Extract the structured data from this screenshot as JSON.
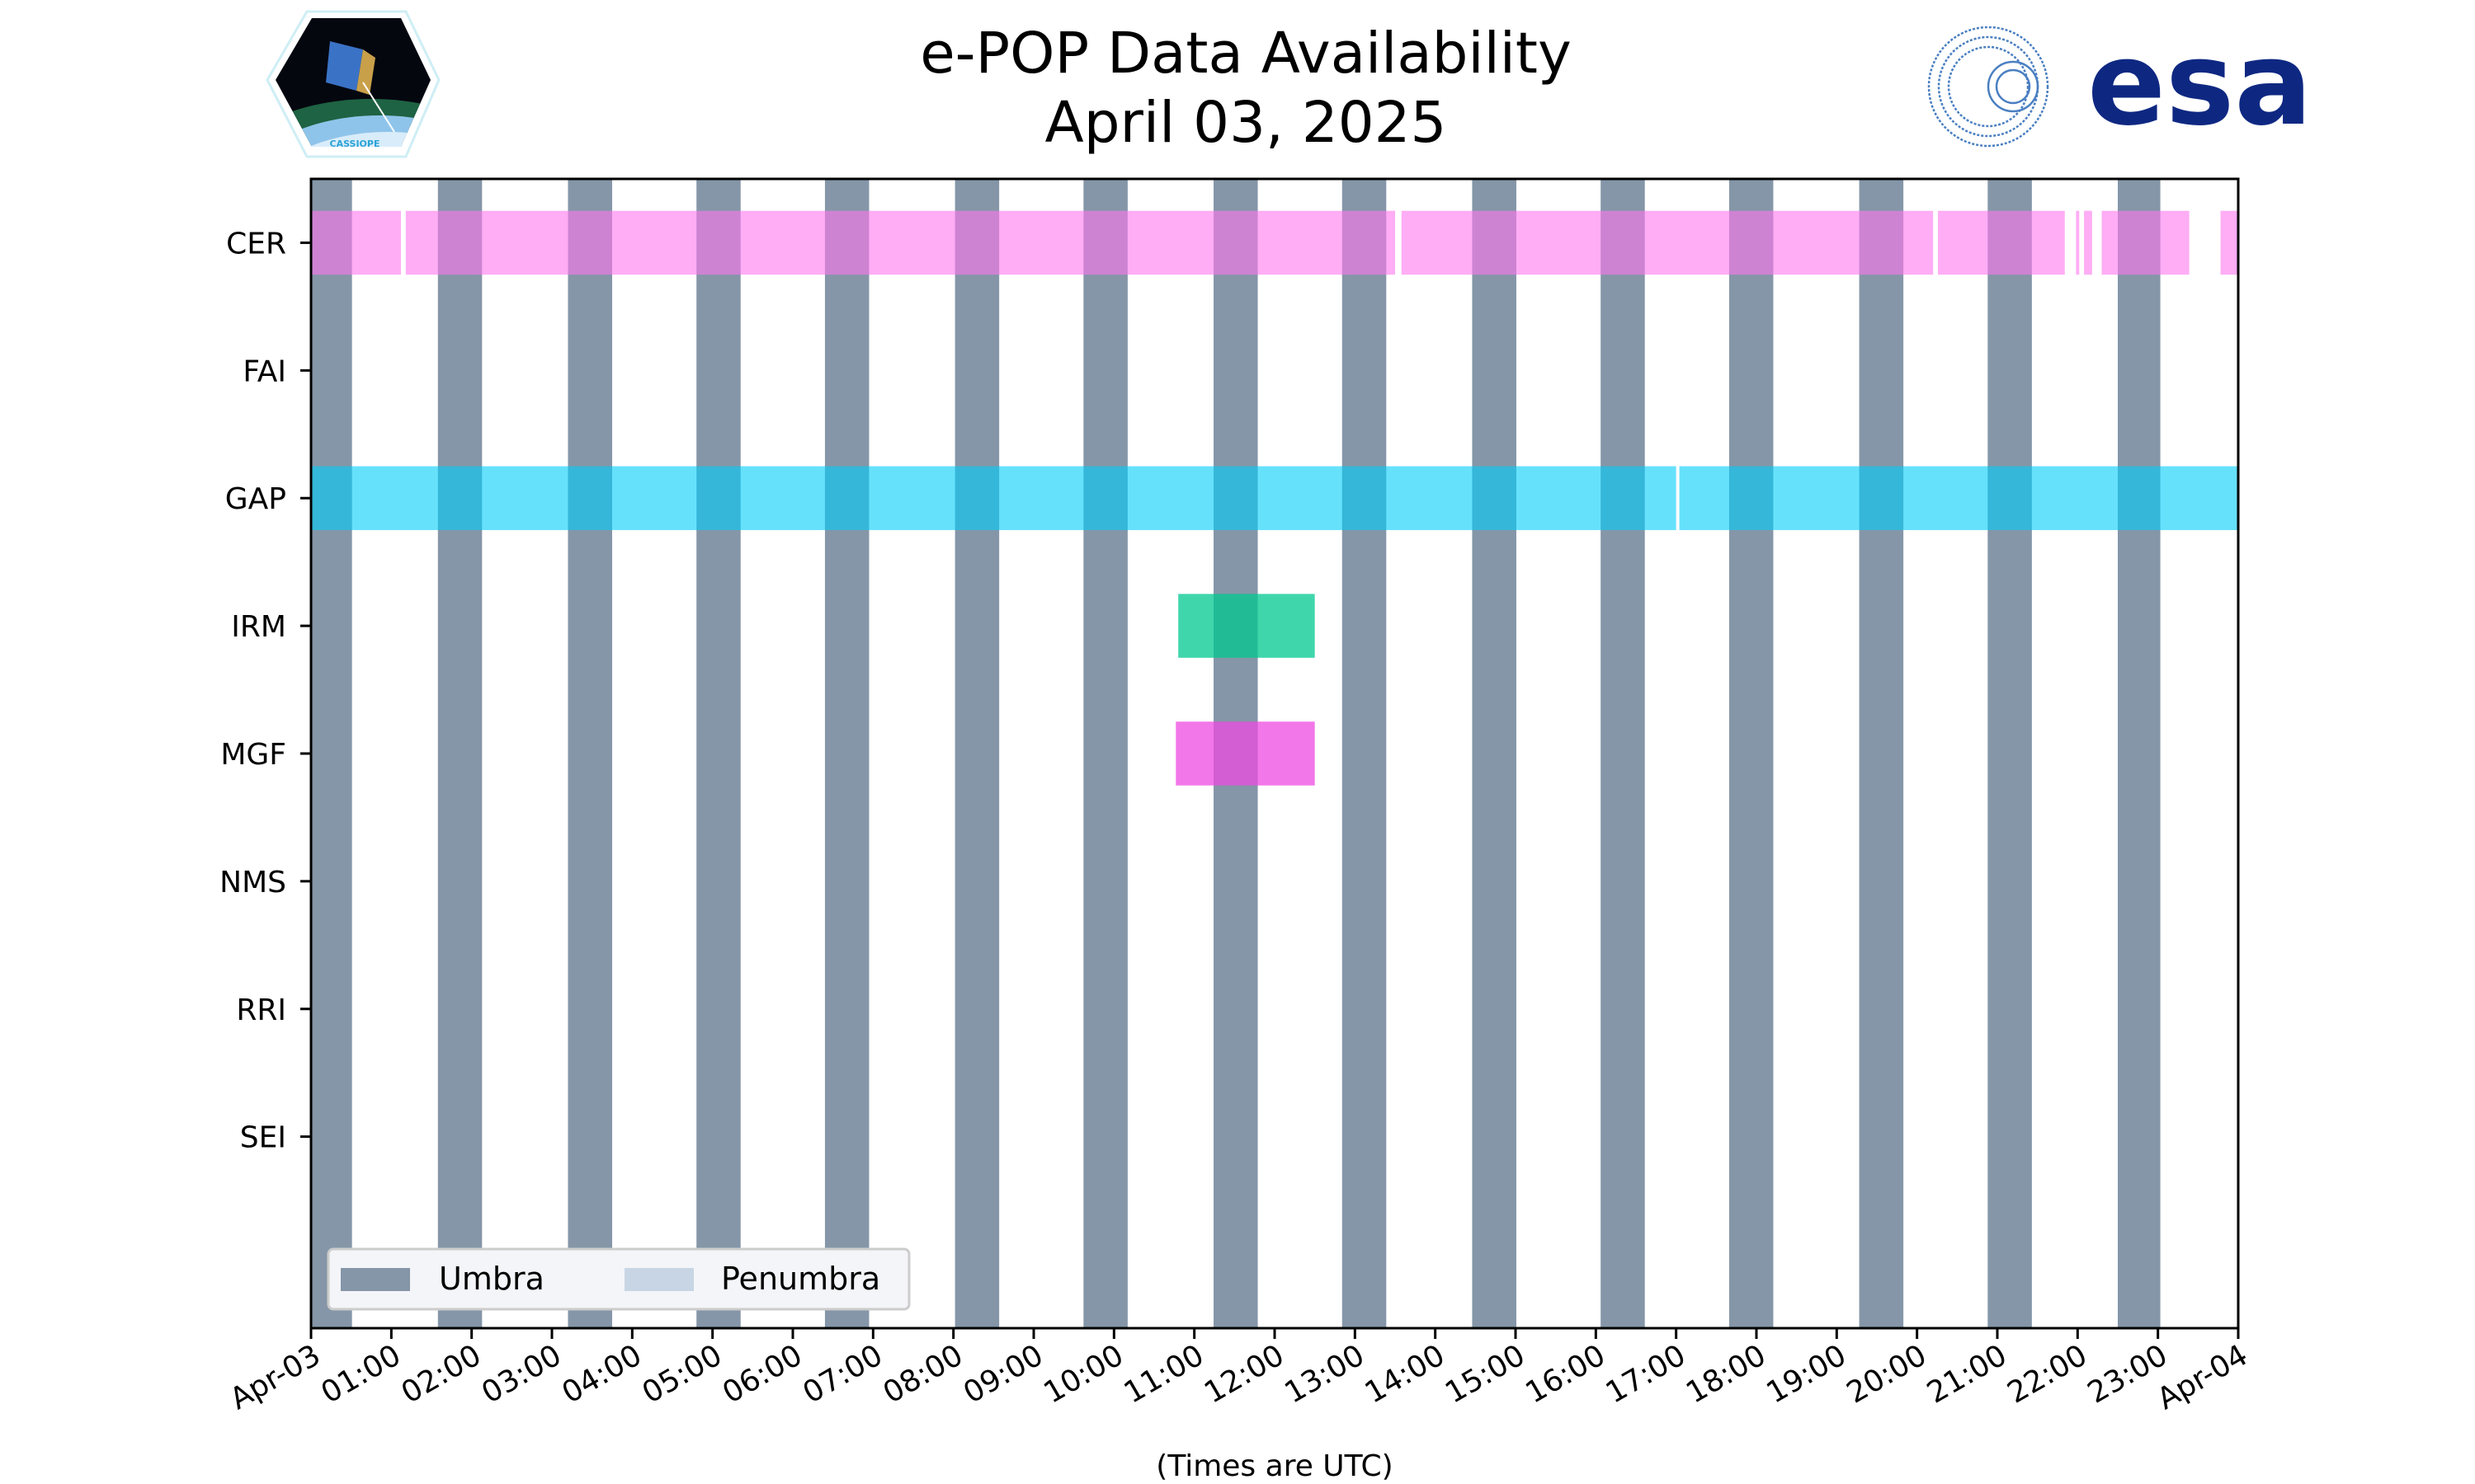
{
  "title": "e-POP Data Availability",
  "subtitle": "April 03, 2025",
  "logos": {
    "left_text": "CASSIOPE",
    "right_text": "esa"
  },
  "chart_data": {
    "type": "timeline",
    "title": "e-POP Data Availability",
    "subtitle": "April 03, 2025",
    "xlabel": "(Times are UTC)",
    "ylabel": "",
    "xlim_hours": [
      0,
      24
    ],
    "ylim_rows": [
      -0.5,
      8.5
    ],
    "x_tick_labels": [
      "Apr-03",
      "01:00",
      "02:00",
      "03:00",
      "04:00",
      "05:00",
      "06:00",
      "07:00",
      "08:00",
      "09:00",
      "10:00",
      "11:00",
      "12:00",
      "13:00",
      "14:00",
      "15:00",
      "16:00",
      "17:00",
      "18:00",
      "19:00",
      "20:00",
      "21:00",
      "22:00",
      "23:00",
      "Apr-04"
    ],
    "categories": [
      "CER",
      "FAI",
      "GAP",
      "IRM",
      "MGF",
      "NMS",
      "RRI",
      "SEI"
    ],
    "colors": {
      "umbra": "#8596a8",
      "penumbra": "#c8d5e4",
      "CER": "#ff77ef",
      "GAP": "#00cdfa",
      "IRM": "#00c890",
      "MGF": "#ee4ae1"
    },
    "series": [
      {
        "name": "CER",
        "intervals": [
          [
            0,
            1.12
          ],
          [
            1.18,
            13.5
          ],
          [
            13.58,
            20.2
          ],
          [
            20.26,
            21.84
          ],
          [
            21.98,
            22.02
          ],
          [
            22.08,
            22.18
          ],
          [
            22.3,
            23.39
          ],
          [
            23.78,
            24
          ]
        ]
      },
      {
        "name": "FAI",
        "intervals": []
      },
      {
        "name": "GAP",
        "intervals": [
          [
            0,
            17.0
          ],
          [
            17.04,
            24
          ]
        ]
      },
      {
        "name": "IRM",
        "intervals": [
          [
            10.8,
            12.5
          ]
        ]
      },
      {
        "name": "MGF",
        "intervals": [
          [
            10.77,
            12.5
          ]
        ]
      },
      {
        "name": "NMS",
        "intervals": []
      },
      {
        "name": "RRI",
        "intervals": []
      },
      {
        "name": "SEI",
        "intervals": []
      }
    ],
    "umbra_intervals": [
      [
        0,
        0.51
      ],
      [
        1.58,
        2.13
      ],
      [
        3.2,
        3.75
      ],
      [
        4.8,
        5.35
      ],
      [
        6.4,
        6.95
      ],
      [
        8.02,
        8.57
      ],
      [
        9.62,
        10.17
      ],
      [
        11.24,
        11.79
      ],
      [
        12.84,
        13.39
      ],
      [
        14.46,
        15.01
      ],
      [
        16.06,
        16.61
      ],
      [
        17.66,
        18.21
      ],
      [
        19.28,
        19.83
      ],
      [
        20.88,
        21.43
      ],
      [
        22.5,
        23.03
      ]
    ],
    "penumbra_intervals": [],
    "legend": {
      "position": "lower-left",
      "entries": [
        "Umbra",
        "Penumbra"
      ]
    }
  }
}
